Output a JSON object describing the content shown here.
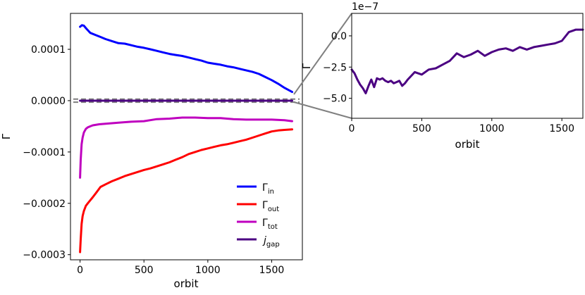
{
  "chart_data": [
    {
      "type": "line",
      "panel": "main",
      "xlabel": "orbit",
      "ylabel": "Γ",
      "xlim": [
        -75,
        1740
      ],
      "ylim": [
        -0.00031,
        0.00017
      ],
      "xticks": [
        0,
        500,
        1000,
        1500
      ],
      "xtick_labels": [
        "0",
        "500",
        "1000",
        "1500"
      ],
      "yticks": [
        0.0001,
        0.0,
        -0.0001,
        -0.0002,
        -0.0003
      ],
      "ytick_labels": [
        "0.0001",
        "0.0000",
        "−0.0001",
        "−0.0002",
        "−0.0003"
      ],
      "legend_position": "lower-right",
      "series": [
        {
          "name": "Γ_in",
          "legend_main": "Γ",
          "legend_sub": "in",
          "color": "#0000ff",
          "x": [
            0,
            15,
            30,
            50,
            80,
            120,
            160,
            200,
            250,
            300,
            350,
            400,
            450,
            500,
            550,
            600,
            650,
            700,
            750,
            800,
            850,
            900,
            950,
            1000,
            1050,
            1100,
            1150,
            1200,
            1250,
            1300,
            1350,
            1400,
            1450,
            1500,
            1550,
            1600,
            1660
          ],
          "y": [
            0.000144,
            0.000147,
            0.000146,
            0.00014,
            0.000132,
            0.000128,
            0.000124,
            0.00012,
            0.000116,
            0.000112,
            0.000111,
            0.000108,
            0.000105,
            0.000103,
            0.0001,
            9.7e-05,
            9.4e-05,
            9.1e-05,
            8.9e-05,
            8.7e-05,
            8.4e-05,
            8.1e-05,
            7.8e-05,
            7.4e-05,
            7.2e-05,
            7e-05,
            6.7e-05,
            6.5e-05,
            6.2e-05,
            5.9e-05,
            5.6e-05,
            5.2e-05,
            4.6e-05,
            4e-05,
            3.3e-05,
            2.5e-05,
            1.7e-05
          ]
        },
        {
          "name": "Γ_out",
          "legend_main": "Γ",
          "legend_sub": "out",
          "color": "#ff0000",
          "x": [
            0,
            5,
            12,
            20,
            30,
            45,
            60,
            80,
            100,
            130,
            160,
            200,
            250,
            300,
            350,
            400,
            450,
            500,
            550,
            600,
            650,
            700,
            750,
            800,
            850,
            900,
            950,
            1000,
            1050,
            1100,
            1150,
            1200,
            1250,
            1300,
            1350,
            1400,
            1450,
            1500,
            1550,
            1600,
            1660
          ],
          "y": [
            -0.000295,
            -0.00027,
            -0.00024,
            -0.000225,
            -0.000215,
            -0.000205,
            -0.0002,
            -0.000194,
            -0.000188,
            -0.000178,
            -0.000168,
            -0.000163,
            -0.000157,
            -0.000152,
            -0.000147,
            -0.000143,
            -0.000139,
            -0.000135,
            -0.000132,
            -0.000128,
            -0.000124,
            -0.00012,
            -0.000115,
            -0.00011,
            -0.000104,
            -0.0001,
            -9.6e-05,
            -9.3e-05,
            -9e-05,
            -8.7e-05,
            -8.5e-05,
            -8.2e-05,
            -7.9e-05,
            -7.6e-05,
            -7.2e-05,
            -6.8e-05,
            -6.4e-05,
            -6e-05,
            -5.8e-05,
            -5.7e-05,
            -5.6e-05
          ]
        },
        {
          "name": "Γ_tot",
          "legend_main": "Γ",
          "legend_sub": "tot",
          "color": "#bf00bf",
          "x": [
            0,
            5,
            12,
            20,
            30,
            45,
            60,
            80,
            100,
            150,
            200,
            300,
            400,
            500,
            600,
            700,
            800,
            900,
            1000,
            1100,
            1200,
            1300,
            1400,
            1500,
            1600,
            1660
          ],
          "y": [
            -0.00015,
            -0.000115,
            -8.5e-05,
            -7.2e-05,
            -6.2e-05,
            -5.5e-05,
            -5.2e-05,
            -5e-05,
            -4.8e-05,
            -4.6e-05,
            -4.5e-05,
            -4.3e-05,
            -4.1e-05,
            -4e-05,
            -3.6e-05,
            -3.5e-05,
            -3.3e-05,
            -3.3e-05,
            -3.4e-05,
            -3.4e-05,
            -3.6e-05,
            -3.7e-05,
            -3.7e-05,
            -3.7e-05,
            -3.8e-05,
            -4e-05
          ]
        },
        {
          "name": "j_gap",
          "legend_main": "j",
          "legend_sub": "gap",
          "color": "#4b0082",
          "x": [
            0,
            1660
          ],
          "y": [
            0.0,
            0.0
          ]
        }
      ],
      "reference_lines": [
        {
          "y": 3e-06,
          "color": "#7f7f7f",
          "style": "dashed"
        },
        {
          "y": -3e-06,
          "color": "#7f7f7f",
          "style": "dashed"
        }
      ]
    },
    {
      "type": "line",
      "panel": "inset",
      "xlabel": "orbit",
      "ylabel": "Γ",
      "offset_label": "1e−7",
      "xlim": [
        0,
        1650
      ],
      "ylim": [
        -6.6,
        1.8
      ],
      "xticks": [
        0,
        500,
        1000,
        1500
      ],
      "xtick_labels": [
        "0",
        "500",
        "1000",
        "1500"
      ],
      "yticks": [
        0.0,
        -2.5,
        -5.0
      ],
      "ytick_labels": [
        "0.0",
        "−2.5",
        "−5.0"
      ],
      "series": [
        {
          "name": "j_gap",
          "color": "#4b0082",
          "x": [
            0,
            20,
            40,
            60,
            80,
            100,
            120,
            140,
            160,
            180,
            200,
            220,
            240,
            260,
            280,
            300,
            320,
            340,
            360,
            380,
            400,
            450,
            500,
            550,
            600,
            650,
            700,
            750,
            800,
            850,
            900,
            950,
            1000,
            1050,
            1100,
            1150,
            1200,
            1250,
            1300,
            1350,
            1400,
            1450,
            1500,
            1550,
            1600,
            1650
          ],
          "y": [
            -2.7,
            -3.0,
            -3.5,
            -3.9,
            -4.2,
            -4.6,
            -4.0,
            -3.5,
            -4.1,
            -3.4,
            -3.5,
            -3.4,
            -3.6,
            -3.7,
            -3.6,
            -3.8,
            -3.7,
            -3.6,
            -4.0,
            -3.8,
            -3.5,
            -2.9,
            -3.1,
            -2.7,
            -2.6,
            -2.3,
            -2.0,
            -1.4,
            -1.7,
            -1.5,
            -1.2,
            -1.6,
            -1.3,
            -1.1,
            -1.0,
            -1.2,
            -0.9,
            -1.1,
            -0.9,
            -0.8,
            -0.7,
            -0.6,
            -0.4,
            0.3,
            0.5,
            0.5
          ]
        }
      ]
    }
  ]
}
